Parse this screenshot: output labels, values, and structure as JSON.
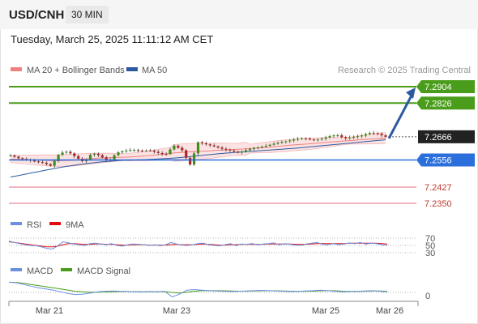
{
  "header": {
    "symbol": "USD/CNH",
    "interval": "30 MIN",
    "datetime": "Tuesday, March 25, 2025 11:11:12 AM CET"
  },
  "legend": {
    "ma20": "MA 20 + Bollinger Bands",
    "ma50": "MA 50",
    "credit": "Research © 2025 Trading Central"
  },
  "colors": {
    "ma20": "#f08080",
    "ma50": "#2c5aa0",
    "green": "#4a9d1a",
    "blue": "#2a6fdb",
    "red": "#e88a96",
    "up": "#3d8f1a",
    "down": "#b22222"
  },
  "chart_data": [
    {
      "type": "candlestick",
      "title": "USD/CNH 30 MIN",
      "ylim": [
        7.2305,
        7.296
      ],
      "x_ticks": [
        "Mar 21",
        "Mar 23",
        "Mar 25",
        "Mar 26"
      ],
      "last_price": 7.2666,
      "levels": [
        {
          "label": "7.2904",
          "value": 7.2904,
          "kind": "target"
        },
        {
          "label": "7.2826",
          "value": 7.2826,
          "kind": "resistance"
        },
        {
          "label": "7.2666",
          "value": 7.2666,
          "kind": "last"
        },
        {
          "label": "7.2556",
          "value": 7.2556,
          "kind": "pivot"
        },
        {
          "label": "7.2427",
          "value": 7.2427,
          "kind": "support"
        },
        {
          "label": "7.2350",
          "value": 7.235,
          "kind": "support"
        }
      ],
      "close_path": [
        7.2578,
        7.2564,
        7.2557,
        7.2548,
        7.2542,
        7.2527,
        7.2588,
        7.2596,
        7.257,
        7.2545,
        7.259,
        7.2575,
        7.2548,
        7.259,
        7.26,
        7.2604,
        7.2598,
        7.2602,
        7.259,
        7.258,
        7.2625,
        7.2605,
        7.2532,
        7.264,
        7.263,
        7.262,
        7.2608,
        7.26,
        7.259,
        7.2604,
        7.2614,
        7.262,
        7.263,
        7.264,
        7.2646,
        7.2656,
        7.266,
        7.265,
        7.2655,
        7.2668,
        7.2675,
        7.2658,
        7.2665,
        7.2671,
        7.2684,
        7.268,
        7.2666
      ],
      "ma20_path": [
        7.256,
        7.2558,
        7.2555,
        7.2552,
        7.2554,
        7.256,
        7.2565,
        7.2568,
        7.257,
        7.2575,
        7.2582,
        7.259,
        7.2595,
        7.2598,
        7.2603,
        7.2606,
        7.261,
        7.2615,
        7.2622,
        7.2628,
        7.2633,
        7.2639,
        7.2645,
        7.265,
        7.2655,
        7.266
      ],
      "ma50_path": [
        7.2479,
        7.2495,
        7.2512,
        7.2528,
        7.254,
        7.255,
        7.2557,
        7.256,
        7.2563,
        7.2568,
        7.2575,
        7.2584,
        7.2592,
        7.2598,
        7.2604,
        7.261,
        7.2616,
        7.2624,
        7.2632,
        7.264,
        7.2648,
        7.2656
      ],
      "projection": {
        "from": 7.2666,
        "to": 7.2904
      }
    },
    {
      "type": "line",
      "title": "RSI",
      "series": [
        {
          "name": "RSI"
        },
        {
          "name": "9MA"
        }
      ],
      "ylim": [
        20,
        80
      ],
      "y_ticks": [
        "70",
        "50",
        "30"
      ],
      "rsi": [
        62,
        58,
        55,
        52,
        50,
        49,
        46,
        42,
        40,
        48,
        60,
        57,
        54,
        52,
        49,
        55,
        56,
        54,
        52,
        55,
        50,
        48,
        52,
        54,
        53,
        52,
        50,
        52,
        49,
        52,
        58,
        54,
        51,
        50,
        52,
        55,
        56,
        52,
        50,
        49,
        52,
        55,
        49,
        54,
        53,
        55,
        52,
        54,
        55,
        57,
        52,
        55,
        53,
        51,
        50,
        54,
        56,
        58,
        53,
        52,
        55,
        52,
        54,
        57,
        55,
        58,
        54,
        56,
        55,
        52,
        51
      ],
      "ma9": [
        60,
        58,
        56,
        54,
        52,
        50,
        48,
        46,
        46,
        48,
        52,
        55,
        55,
        54,
        53,
        53,
        54,
        54,
        53,
        53,
        52,
        51,
        51,
        52,
        52,
        52,
        51,
        51,
        51,
        51,
        52,
        53,
        52,
        52,
        52,
        53,
        54,
        53,
        52,
        51,
        51,
        52,
        52,
        53,
        53,
        53,
        53,
        53,
        54,
        54,
        54,
        54,
        54,
        53,
        53,
        53,
        54,
        55,
        55,
        55,
        55,
        55,
        55,
        56,
        56,
        56,
        56,
        56,
        56,
        55,
        54
      ]
    },
    {
      "type": "line",
      "title": "MACD",
      "series": [
        {
          "name": "MACD"
        },
        {
          "name": "MACD Signal"
        }
      ],
      "y_ticks": [
        "0"
      ],
      "macd": [
        0.9,
        0.85,
        0.7,
        0.55,
        0.4,
        0.3,
        0.2,
        0.05,
        -0.1,
        -0.2,
        -0.15,
        -0.05,
        0.05,
        0.1,
        0.12,
        0.1,
        0.08,
        0.06,
        0.05,
        0.08,
        0.05,
        0.1,
        -0.4,
        -0.15,
        0.2,
        0.25,
        0.2,
        0.15,
        0.12,
        0.1,
        0.08,
        0.1,
        0.12,
        0.15,
        0.18,
        0.15,
        0.12,
        0.1,
        0.08,
        0.1,
        0.12,
        0.15,
        0.2,
        0.15,
        0.1,
        0.05,
        0.08,
        0.1,
        0.12,
        0.15,
        0.1,
        0.05
      ],
      "signal": [
        0.9,
        0.88,
        0.8,
        0.7,
        0.6,
        0.5,
        0.4,
        0.3,
        0.2,
        0.1,
        0.05,
        0.02,
        0.02,
        0.04,
        0.06,
        0.08,
        0.08,
        0.07,
        0.06,
        0.06,
        0.06,
        0.07,
        0.0,
        -0.05,
        0.02,
        0.1,
        0.15,
        0.16,
        0.15,
        0.14,
        0.12,
        0.11,
        0.11,
        0.12,
        0.14,
        0.15,
        0.14,
        0.13,
        0.11,
        0.1,
        0.1,
        0.11,
        0.14,
        0.15,
        0.14,
        0.11,
        0.09,
        0.09,
        0.1,
        0.12,
        0.12,
        0.1
      ]
    }
  ]
}
